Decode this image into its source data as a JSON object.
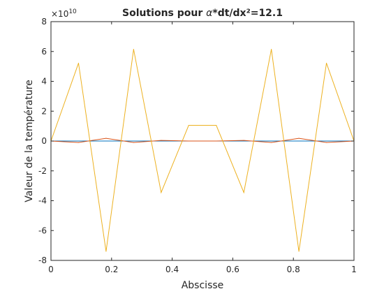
{
  "chart_data": {
    "type": "line",
    "title": "Solutions pour α*dt/dx²=12.1",
    "title_parts": {
      "prefix": "Solutions pour ",
      "symbol": "α",
      "suffix": "*dt/dx²=12.1"
    },
    "xlabel": "Abscisse",
    "ylabel": "Valeur de la température",
    "xlim": [
      0,
      1
    ],
    "ylim": [
      -80000000000.0,
      80000000000.0
    ],
    "y_exponent_label": {
      "base": "×10",
      "exponent": "10"
    },
    "x_ticks": [
      {
        "value": 0,
        "label": "0"
      },
      {
        "value": 0.2,
        "label": "0.2"
      },
      {
        "value": 0.4,
        "label": "0.4"
      },
      {
        "value": 0.6,
        "label": "0.6"
      },
      {
        "value": 0.8,
        "label": "0.8"
      },
      {
        "value": 1,
        "label": "1"
      }
    ],
    "y_ticks": [
      {
        "value": -80000000000.0,
        "label": "-8"
      },
      {
        "value": -60000000000.0,
        "label": "-6"
      },
      {
        "value": -40000000000.0,
        "label": "-4"
      },
      {
        "value": -20000000000.0,
        "label": "-2"
      },
      {
        "value": 0,
        "label": "0"
      },
      {
        "value": 20000000000.0,
        "label": "2"
      },
      {
        "value": 40000000000.0,
        "label": "4"
      },
      {
        "value": 60000000000.0,
        "label": "6"
      },
      {
        "value": 80000000000.0,
        "label": "8"
      }
    ],
    "grid": false,
    "box": true,
    "x": [
      0,
      0.0909,
      0.1818,
      0.2727,
      0.3636,
      0.4545,
      0.5455,
      0.6364,
      0.7273,
      0.8182,
      0.9091,
      1
    ],
    "series": [
      {
        "color": "#0072BD",
        "values": [
          0,
          0,
          0,
          0,
          0,
          0,
          0,
          0,
          0,
          0,
          0,
          0
        ]
      },
      {
        "color": "#D95319",
        "values": [
          0,
          -1000000000.0,
          1800000000.0,
          -1000000000.0,
          400000000.0,
          0,
          0,
          400000000.0,
          -1000000000.0,
          1800000000.0,
          -1000000000.0,
          0
        ]
      },
      {
        "color": "#EDB120",
        "values": [
          0,
          52200000000.0,
          -74000000000.0,
          61500000000.0,
          -34500000000.0,
          10500000000.0,
          10500000000.0,
          -34500000000.0,
          61500000000.0,
          -74000000000.0,
          52200000000.0,
          0
        ]
      }
    ]
  }
}
